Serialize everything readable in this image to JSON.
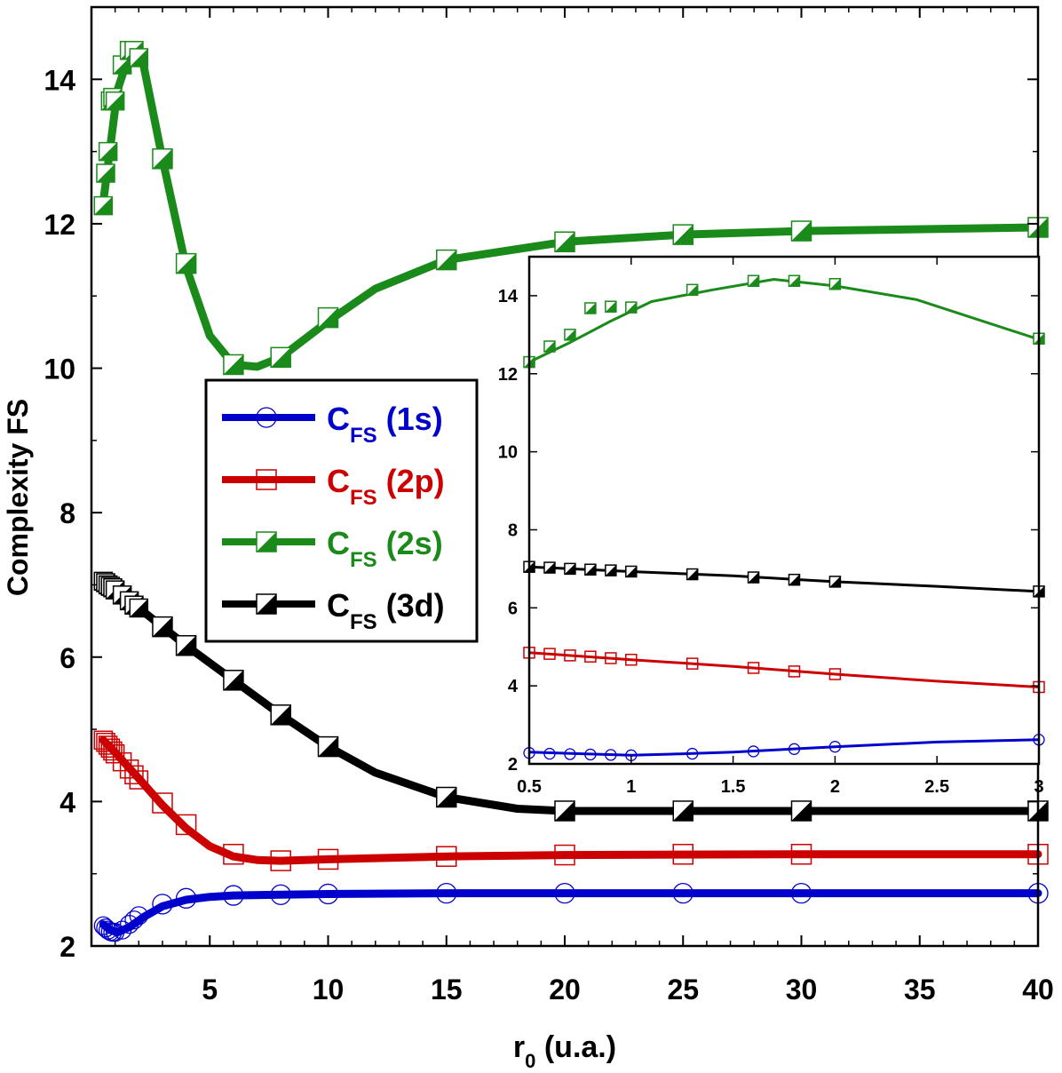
{
  "chart_data": [
    {
      "type": "line",
      "xlabel_main": "r",
      "xlabel_sub": "0",
      "xlabel_unit": " (u.a.)",
      "ylabel": "Complexity FS",
      "xlim": [
        0,
        40
      ],
      "ylim": [
        2,
        15
      ],
      "xticks": [
        5,
        10,
        15,
        20,
        25,
        30,
        35,
        40
      ],
      "yticks": [
        2,
        4,
        6,
        8,
        10,
        12,
        14
      ],
      "legend": {
        "position": "center-left",
        "entries": [
          {
            "series": "1s",
            "main": "C",
            "sub": "FS",
            "label": " (1s)"
          },
          {
            "series": "2p",
            "main": "C",
            "sub": "FS",
            "label": " (2p)"
          },
          {
            "series": "2s",
            "main": "C",
            "sub": "FS",
            "label": " (2s)"
          },
          {
            "series": "3d",
            "main": "C",
            "sub": "FS",
            "label": " (3d)"
          }
        ]
      },
      "series": [
        {
          "name": "1s",
          "color": "#0000cc",
          "marker": "circle",
          "points": [
            [
              0.5,
              2.28
            ],
            [
              0.6,
              2.25
            ],
            [
              0.7,
              2.22
            ],
            [
              0.8,
              2.2
            ],
            [
              0.9,
              2.19
            ],
            [
              1,
              2.19
            ],
            [
              1.3,
              2.22
            ],
            [
              1.6,
              2.3
            ],
            [
              1.8,
              2.36
            ],
            [
              2,
              2.42
            ],
            [
              3,
              2.58
            ],
            [
              4,
              2.66
            ],
            [
              6,
              2.7
            ],
            [
              8,
              2.71
            ],
            [
              10,
              2.72
            ],
            [
              15,
              2.73
            ],
            [
              20,
              2.73
            ],
            [
              25,
              2.73
            ],
            [
              30,
              2.73
            ],
            [
              40,
              2.73
            ]
          ],
          "line": [
            [
              0.5,
              2.3
            ],
            [
              0.8,
              2.22
            ],
            [
              1.1,
              2.19
            ],
            [
              1.6,
              2.26
            ],
            [
              2.2,
              2.4
            ],
            [
              3,
              2.55
            ],
            [
              4,
              2.64
            ],
            [
              5,
              2.68
            ],
            [
              6,
              2.7
            ],
            [
              8,
              2.71
            ],
            [
              10,
              2.72
            ],
            [
              15,
              2.73
            ],
            [
              40,
              2.73
            ]
          ]
        },
        {
          "name": "2p",
          "color": "#cc0000",
          "marker": "square",
          "points": [
            [
              0.5,
              4.85
            ],
            [
              0.6,
              4.82
            ],
            [
              0.7,
              4.78
            ],
            [
              0.8,
              4.74
            ],
            [
              0.9,
              4.7
            ],
            [
              1,
              4.66
            ],
            [
              1.3,
              4.55
            ],
            [
              1.6,
              4.45
            ],
            [
              1.8,
              4.37
            ],
            [
              2,
              4.3
            ],
            [
              3,
              3.98
            ],
            [
              4,
              3.68
            ],
            [
              6,
              3.27
            ],
            [
              8,
              3.18
            ],
            [
              10,
              3.2
            ],
            [
              15,
              3.24
            ],
            [
              20,
              3.26
            ],
            [
              25,
              3.27
            ],
            [
              30,
              3.27
            ],
            [
              40,
              3.27
            ]
          ],
          "line": [
            [
              0.5,
              4.85
            ],
            [
              1,
              4.68
            ],
            [
              2,
              4.32
            ],
            [
              3,
              3.95
            ],
            [
              4,
              3.63
            ],
            [
              5,
              3.38
            ],
            [
              6,
              3.24
            ],
            [
              7,
              3.19
            ],
            [
              8,
              3.18
            ],
            [
              10,
              3.2
            ],
            [
              15,
              3.24
            ],
            [
              20,
              3.26
            ],
            [
              30,
              3.27
            ],
            [
              40,
              3.27
            ]
          ]
        },
        {
          "name": "2s",
          "color": "#1a8a1a",
          "marker": "half-square",
          "points": [
            [
              0.5,
              12.25
            ],
            [
              0.6,
              12.7
            ],
            [
              0.7,
              13.0
            ],
            [
              0.8,
              13.7
            ],
            [
              0.9,
              13.75
            ],
            [
              1,
              13.7
            ],
            [
              1.3,
              14.2
            ],
            [
              1.6,
              14.4
            ],
            [
              1.8,
              14.4
            ],
            [
              2,
              14.3
            ],
            [
              3,
              12.9
            ],
            [
              4,
              11.45
            ],
            [
              6,
              10.05
            ],
            [
              8,
              10.15
            ],
            [
              10,
              10.7
            ],
            [
              15,
              11.5
            ],
            [
              20,
              11.75
            ],
            [
              25,
              11.85
            ],
            [
              30,
              11.9
            ],
            [
              40,
              11.95
            ]
          ],
          "line": [
            [
              0.5,
              12.3
            ],
            [
              1.1,
              13.85
            ],
            [
              1.7,
              14.45
            ],
            [
              2.2,
              14.2
            ],
            [
              3,
              12.9
            ],
            [
              4,
              11.4
            ],
            [
              5,
              10.45
            ],
            [
              6,
              10.05
            ],
            [
              7,
              10.02
            ],
            [
              8,
              10.15
            ],
            [
              10,
              10.65
            ],
            [
              12,
              11.1
            ],
            [
              15,
              11.5
            ],
            [
              20,
              11.75
            ],
            [
              25,
              11.85
            ],
            [
              30,
              11.9
            ],
            [
              40,
              11.95
            ]
          ]
        },
        {
          "name": "3d",
          "color": "#000000",
          "marker": "half-square",
          "points": [
            [
              0.5,
              7.05
            ],
            [
              0.6,
              7.03
            ],
            [
              0.7,
              7.0
            ],
            [
              0.8,
              6.98
            ],
            [
              0.9,
              6.96
            ],
            [
              1,
              6.93
            ],
            [
              1.3,
              6.86
            ],
            [
              1.6,
              6.78
            ],
            [
              1.8,
              6.72
            ],
            [
              2,
              6.68
            ],
            [
              3,
              6.42
            ],
            [
              4,
              6.16
            ],
            [
              6,
              5.68
            ],
            [
              8,
              5.2
            ],
            [
              10,
              4.76
            ],
            [
              15,
              4.06
            ],
            [
              20,
              3.87
            ],
            [
              25,
              3.87
            ],
            [
              30,
              3.87
            ],
            [
              40,
              3.87
            ]
          ],
          "line": [
            [
              0.5,
              7.05
            ],
            [
              1,
              6.93
            ],
            [
              2,
              6.68
            ],
            [
              3,
              6.42
            ],
            [
              4,
              6.16
            ],
            [
              6,
              5.68
            ],
            [
              8,
              5.2
            ],
            [
              10,
              4.76
            ],
            [
              12,
              4.4
            ],
            [
              15,
              4.06
            ],
            [
              18,
              3.9
            ],
            [
              20,
              3.87
            ],
            [
              40,
              3.87
            ]
          ]
        }
      ]
    },
    {
      "type": "line",
      "role": "inset",
      "xlim": [
        0.5,
        3
      ],
      "ylim": [
        2,
        15
      ],
      "xticks": [
        0.5,
        1,
        1.5,
        2,
        2.5,
        3
      ],
      "xtick_labels": [
        "0.5",
        "1",
        "1.5",
        "2",
        "2.5",
        "3"
      ],
      "yticks": [
        2,
        4,
        6,
        8,
        10,
        12,
        14
      ],
      "series": [
        {
          "name": "1s",
          "color": "#0000cc",
          "marker": "circle",
          "points": [
            [
              0.5,
              2.28
            ],
            [
              0.6,
              2.26
            ],
            [
              0.7,
              2.25
            ],
            [
              0.8,
              2.24
            ],
            [
              0.9,
              2.23
            ],
            [
              1,
              2.22
            ],
            [
              1.3,
              2.26
            ],
            [
              1.6,
              2.32
            ],
            [
              1.8,
              2.38
            ],
            [
              2,
              2.44
            ],
            [
              3,
              2.62
            ]
          ],
          "line": [
            [
              0.5,
              2.3
            ],
            [
              1,
              2.22
            ],
            [
              1.2,
              2.25
            ],
            [
              1.5,
              2.3
            ],
            [
              2,
              2.44
            ],
            [
              2.5,
              2.56
            ],
            [
              3,
              2.62
            ]
          ]
        },
        {
          "name": "2p",
          "color": "#cc0000",
          "marker": "square",
          "points": [
            [
              0.5,
              4.85
            ],
            [
              0.6,
              4.82
            ],
            [
              0.7,
              4.78
            ],
            [
              0.8,
              4.75
            ],
            [
              0.9,
              4.71
            ],
            [
              1,
              4.67
            ],
            [
              1.3,
              4.57
            ],
            [
              1.6,
              4.46
            ],
            [
              1.8,
              4.37
            ],
            [
              2,
              4.3
            ],
            [
              3,
              3.97
            ]
          ],
          "line": [
            [
              0.5,
              4.85
            ],
            [
              1,
              4.67
            ],
            [
              1.5,
              4.5
            ],
            [
              2,
              4.3
            ],
            [
              2.5,
              4.12
            ],
            [
              3,
              3.97
            ]
          ]
        },
        {
          "name": "2s",
          "color": "#1a8a1a",
          "marker": "half-square",
          "points": [
            [
              0.5,
              12.3
            ],
            [
              0.6,
              12.7
            ],
            [
              0.7,
              13.0
            ],
            [
              0.8,
              13.68
            ],
            [
              0.9,
              13.72
            ],
            [
              1,
              13.7
            ],
            [
              1.3,
              14.15
            ],
            [
              1.6,
              14.38
            ],
            [
              1.8,
              14.38
            ],
            [
              2,
              14.3
            ],
            [
              3,
              12.9
            ]
          ],
          "line": [
            [
              0.5,
              12.3
            ],
            [
              0.7,
              12.8
            ],
            [
              0.9,
              13.35
            ],
            [
              1.1,
              13.85
            ],
            [
              1.4,
              14.15
            ],
            [
              1.7,
              14.42
            ],
            [
              2,
              14.25
            ],
            [
              2.4,
              13.9
            ],
            [
              3,
              12.88
            ]
          ]
        },
        {
          "name": "3d",
          "color": "#000000",
          "marker": "half-square",
          "points": [
            [
              0.5,
              7.05
            ],
            [
              0.6,
              7.03
            ],
            [
              0.7,
              7.0
            ],
            [
              0.8,
              6.98
            ],
            [
              0.9,
              6.96
            ],
            [
              1,
              6.93
            ],
            [
              1.3,
              6.86
            ],
            [
              1.6,
              6.78
            ],
            [
              1.8,
              6.72
            ],
            [
              2,
              6.67
            ],
            [
              3,
              6.42
            ]
          ],
          "line": [
            [
              0.5,
              7.05
            ],
            [
              1,
              6.93
            ],
            [
              1.5,
              6.82
            ],
            [
              2,
              6.67
            ],
            [
              2.5,
              6.55
            ],
            [
              3,
              6.42
            ]
          ]
        }
      ]
    }
  ]
}
